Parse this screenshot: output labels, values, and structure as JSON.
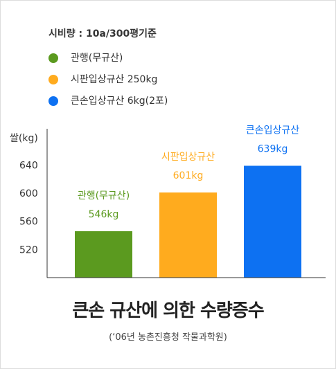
{
  "note": "시비량 : 10a/300평기준",
  "legend": [
    {
      "label": "관행(무규산)",
      "color": "#5b9a1f"
    },
    {
      "label": "시판입상규산 250kg",
      "color": "#ffab1e"
    },
    {
      "label": "큰손입상규산 6kg(2포)",
      "color": "#0d71f2"
    }
  ],
  "chart_data": {
    "type": "bar",
    "ylabel": "쌀(kg)",
    "ylim": [
      480,
      680
    ],
    "yticks": [
      520,
      560,
      600,
      640
    ],
    "grid": false,
    "legend_position": "top-left",
    "categories": [
      "관행(무규산)",
      "시판입상규산",
      "큰손입상규산"
    ],
    "values": [
      546,
      601,
      639
    ],
    "data_labels": [
      "546kg",
      "601kg",
      "639kg"
    ],
    "colors": [
      "#5b9a1f",
      "#ffab1e",
      "#0d71f2"
    ]
  },
  "caption": {
    "title": "큰손 규산에 의한 수량증수",
    "source": "(‘06년 농촌진흥청 작물과학원)"
  }
}
